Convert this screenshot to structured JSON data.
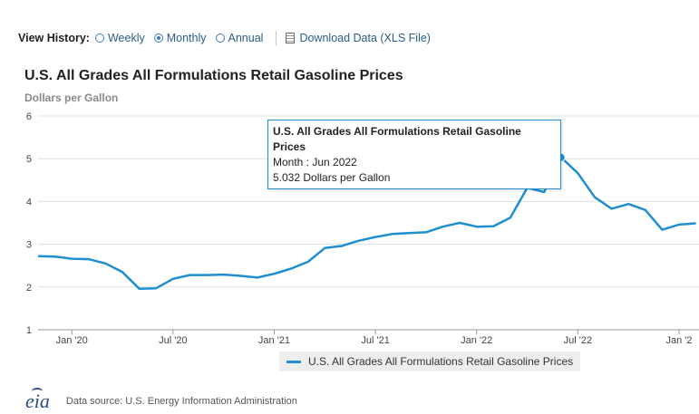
{
  "view_history": {
    "label": "View History:",
    "options": [
      {
        "label": "Weekly",
        "selected": false
      },
      {
        "label": "Monthly",
        "selected": true
      },
      {
        "label": "Annual",
        "selected": false
      }
    ],
    "download_label": "Download Data (XLS File)"
  },
  "chart_data": {
    "type": "line",
    "title": "U.S. All Grades All Formulations Retail Gasoline Prices",
    "ylabel": "Dollars per Gallon",
    "xlabel": "",
    "ylim": [
      1,
      6
    ],
    "yticks": [
      1,
      2,
      3,
      4,
      5,
      6
    ],
    "xlim": [
      "2019-11",
      "2023-01"
    ],
    "xticks": [
      {
        "date": "2020-01",
        "label": "Jan '20"
      },
      {
        "date": "2020-07",
        "label": "Jul '20"
      },
      {
        "date": "2021-01",
        "label": "Jan '21"
      },
      {
        "date": "2021-07",
        "label": "Jul '21"
      },
      {
        "date": "2022-01",
        "label": "Jan '22"
      },
      {
        "date": "2022-07",
        "label": "Jul '22"
      },
      {
        "date": "2023-01",
        "label": "Jan '2"
      }
    ],
    "grid": true,
    "legend_position": "bottom",
    "series": [
      {
        "name": "U.S. All Grades All Formulations Retail Gasoline Prices",
        "color": "#1f8fd0",
        "points": [
          [
            "2019-11",
            2.72
          ],
          [
            "2019-12",
            2.71
          ],
          [
            "2020-01",
            2.66
          ],
          [
            "2020-02",
            2.65
          ],
          [
            "2020-03",
            2.55
          ],
          [
            "2020-04",
            2.35
          ],
          [
            "2020-05",
            1.96
          ],
          [
            "2020-06",
            1.97
          ],
          [
            "2020-07",
            2.19
          ],
          [
            "2020-08",
            2.28
          ],
          [
            "2020-09",
            2.28
          ],
          [
            "2020-10",
            2.29
          ],
          [
            "2020-11",
            2.26
          ],
          [
            "2020-12",
            2.22
          ],
          [
            "2021-01",
            2.31
          ],
          [
            "2021-02",
            2.43
          ],
          [
            "2021-03",
            2.59
          ],
          [
            "2021-04",
            2.91
          ],
          [
            "2021-05",
            2.96
          ],
          [
            "2021-06",
            3.08
          ],
          [
            "2021-07",
            3.17
          ],
          [
            "2021-08",
            3.24
          ],
          [
            "2021-09",
            3.26
          ],
          [
            "2021-10",
            3.28
          ],
          [
            "2021-11",
            3.41
          ],
          [
            "2021-12",
            3.5
          ],
          [
            "2022-01",
            3.41
          ],
          [
            "2022-02",
            3.42
          ],
          [
            "2022-03",
            3.62
          ],
          [
            "2022-04",
            4.32
          ],
          [
            "2022-05",
            4.22
          ],
          [
            "2022-06",
            5.032
          ],
          [
            "2022-07",
            4.66
          ],
          [
            "2022-08",
            4.1
          ],
          [
            "2022-09",
            3.83
          ],
          [
            "2022-10",
            3.94
          ],
          [
            "2022-11",
            3.8
          ],
          [
            "2022-12",
            3.34
          ],
          [
            "2023-01",
            3.46
          ],
          [
            "2023-02",
            3.49
          ]
        ]
      }
    ],
    "tooltip": {
      "title": "U.S. All Grades All Formulations Retail Gasoline Prices",
      "line1": "Month : Jun 2022",
      "line2": "5.032 Dollars per Gallon",
      "point_date": "2022-06",
      "point_value": 5.032
    }
  },
  "footer": {
    "logo_text": "eia",
    "source": "Data source: U.S. Energy Information Administration"
  }
}
